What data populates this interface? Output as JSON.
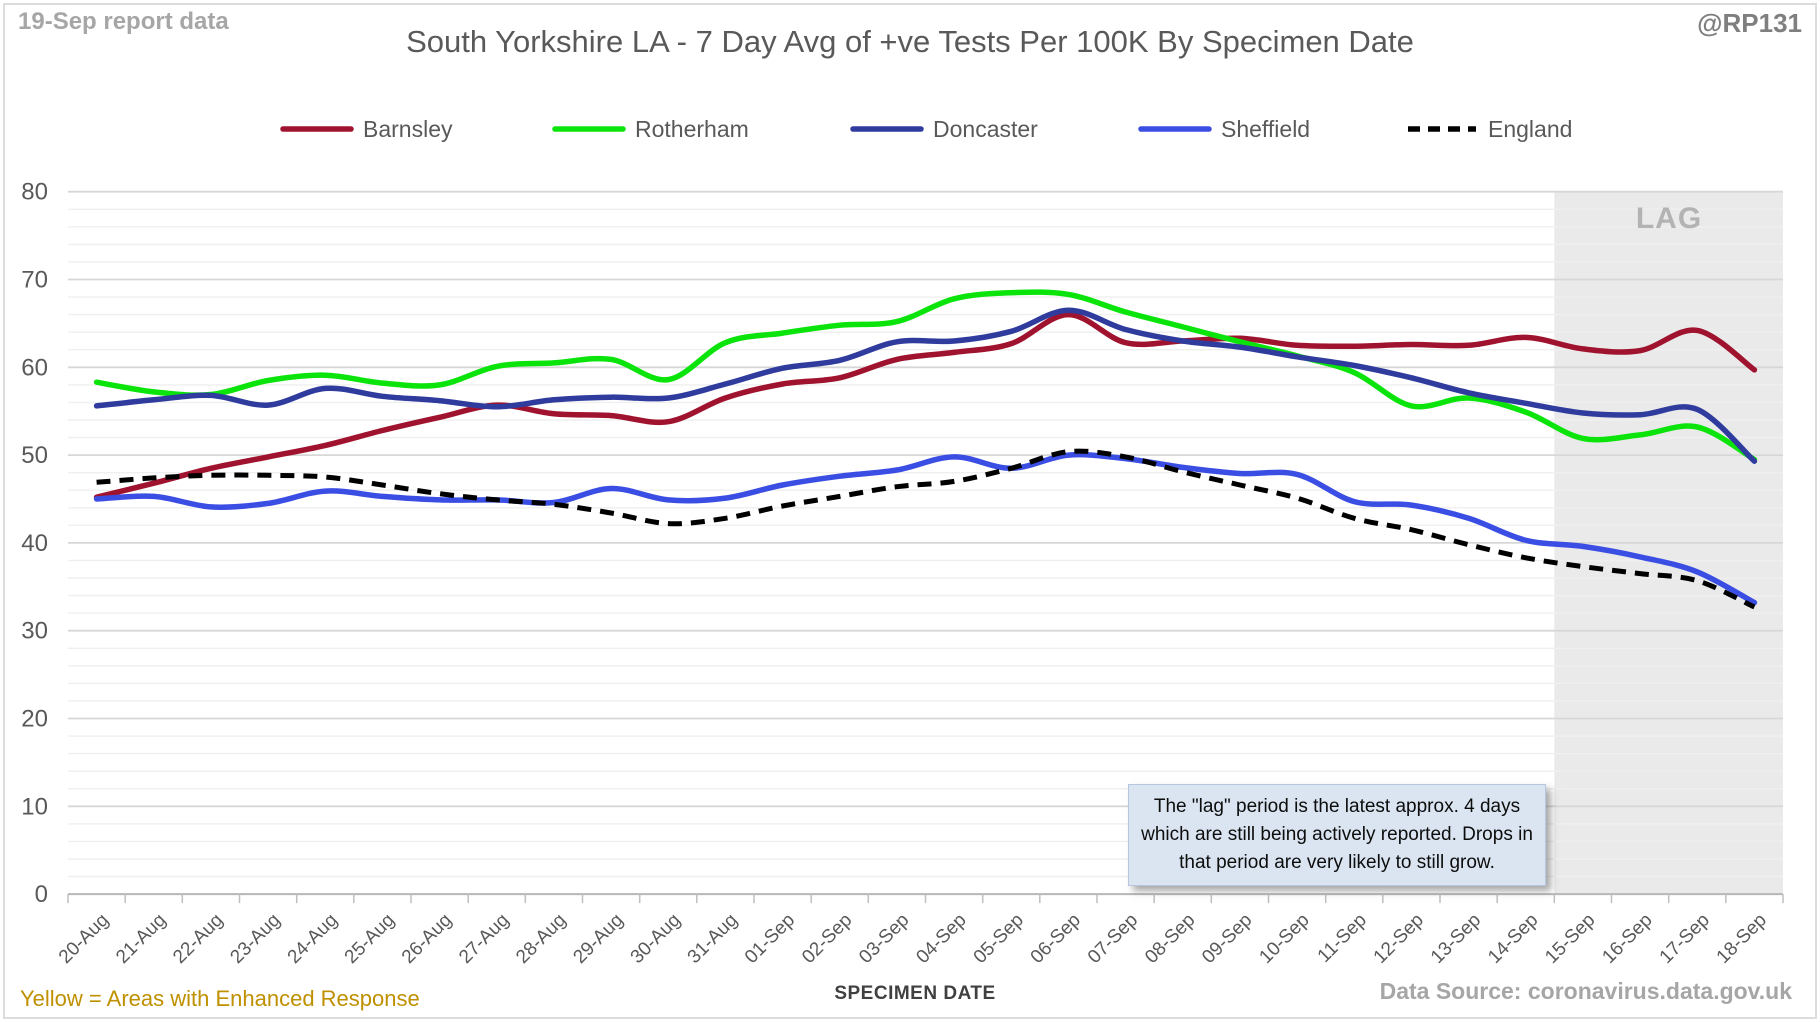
{
  "header": {
    "report_note": "19-Sep report data",
    "title": "South Yorkshire LA - 7 Day Avg of +ve Tests Per 100K By Specimen Date",
    "handle": "@RP131"
  },
  "annotation": {
    "text": "The \"lag\" period is the latest approx. 4 days which are still being actively reported. Drops in that period are very likely to still grow."
  },
  "footer": {
    "note_left": "Yellow = Areas with Enhanced Response",
    "x_axis_title": "SPECIMEN DATE",
    "source": "Data Source: coronavirus.data.gov.uk"
  },
  "chart_data": {
    "type": "line",
    "title": "South Yorkshire LA - 7 Day Avg of +ve Tests Per 100K By Specimen Date",
    "xlabel": "SPECIMEN DATE",
    "ylabel": "",
    "ylim": [
      0,
      80
    ],
    "y_major_step": 10,
    "y_minor_step": 2,
    "grid": true,
    "legend_position": "top",
    "lag_label": "LAG",
    "lag_band": {
      "start_category": "15-Sep",
      "end_category": "18-Sep"
    },
    "categories": [
      "20-Aug",
      "21-Aug",
      "22-Aug",
      "23-Aug",
      "24-Aug",
      "25-Aug",
      "26-Aug",
      "27-Aug",
      "28-Aug",
      "29-Aug",
      "30-Aug",
      "31-Aug",
      "01-Sep",
      "02-Sep",
      "03-Sep",
      "04-Sep",
      "05-Sep",
      "06-Sep",
      "07-Sep",
      "08-Sep",
      "09-Sep",
      "10-Sep",
      "11-Sep",
      "12-Sep",
      "13-Sep",
      "14-Sep",
      "15-Sep",
      "16-Sep",
      "17-Sep",
      "18-Sep"
    ],
    "series": [
      {
        "name": "Barnsley",
        "color": "#a0132f",
        "dashed": false,
        "values": [
          45.2,
          46.8,
          48.5,
          49.8,
          51.1,
          52.8,
          54.3,
          55.7,
          54.7,
          54.5,
          53.8,
          56.5,
          58.1,
          58.8,
          60.9,
          61.7,
          62.7,
          66.0,
          62.8,
          63.0,
          63.3,
          62.5,
          62.4,
          62.6,
          62.5,
          63.4,
          62.1,
          61.9,
          64.2,
          59.7
        ]
      },
      {
        "name": "Rotherham",
        "color": "#0ae40a",
        "dashed": false,
        "values": [
          58.3,
          57.2,
          56.9,
          58.5,
          59.1,
          58.2,
          58.0,
          60.1,
          60.5,
          60.9,
          58.6,
          62.8,
          63.9,
          64.8,
          65.2,
          67.8,
          68.5,
          68.3,
          66.3,
          64.6,
          62.9,
          61.3,
          59.4,
          55.6,
          56.5,
          54.9,
          51.9,
          52.3,
          53.2,
          49.5
        ]
      },
      {
        "name": "Doncaster",
        "color": "#2f3c9e",
        "dashed": false,
        "values": [
          55.6,
          56.3,
          56.8,
          55.7,
          57.6,
          56.7,
          56.2,
          55.5,
          56.3,
          56.6,
          56.5,
          58.1,
          59.9,
          60.8,
          62.9,
          63.0,
          64.1,
          66.5,
          64.3,
          63.0,
          62.3,
          61.2,
          60.2,
          58.8,
          57.1,
          55.9,
          54.8,
          54.6,
          55.2,
          49.3
        ]
      },
      {
        "name": "Sheffield",
        "color": "#3b4ee4",
        "dashed": false,
        "values": [
          45.0,
          45.3,
          44.1,
          44.5,
          45.9,
          45.3,
          44.9,
          44.9,
          44.6,
          46.2,
          44.9,
          45.1,
          46.6,
          47.6,
          48.3,
          49.8,
          48.5,
          50.0,
          49.6,
          48.6,
          47.9,
          47.8,
          44.7,
          44.3,
          42.8,
          40.3,
          39.6,
          38.4,
          36.7,
          33.2
        ]
      },
      {
        "name": "England",
        "color": "#000000",
        "dashed": true,
        "values": [
          46.9,
          47.4,
          47.7,
          47.7,
          47.5,
          46.6,
          45.6,
          44.9,
          44.4,
          43.4,
          42.2,
          42.8,
          44.2,
          45.3,
          46.4,
          47.0,
          48.5,
          50.4,
          49.8,
          48.1,
          46.6,
          45.1,
          42.8,
          41.5,
          39.8,
          38.3,
          37.3,
          36.5,
          35.7,
          32.7
        ]
      }
    ],
    "style": {
      "band_fill": "#eaeaea",
      "lag_text_color": "#b3b3b3",
      "grid_major": "#d7d7d7",
      "grid_minor": "#efefef",
      "axis_line": "#b7b7b7",
      "tick_color": "#bfbfbf",
      "tick_label_color": "#595959"
    }
  }
}
